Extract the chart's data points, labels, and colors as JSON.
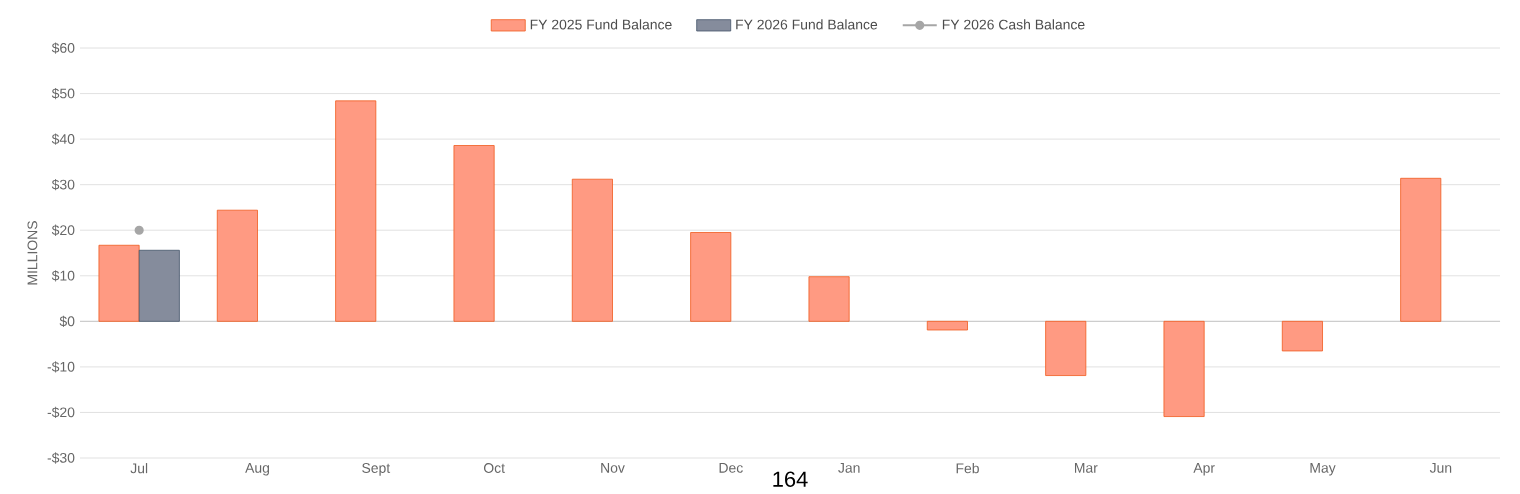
{
  "chart_data": {
    "type": "bar",
    "ylabel": "MILLIONS",
    "categories": [
      "Jul",
      "Aug",
      "Sept",
      "Oct",
      "Nov",
      "Dec",
      "Jan",
      "Feb",
      "Mar",
      "Apr",
      "May",
      "Jun"
    ],
    "series": [
      {
        "name": "FY 2025 Fund Balance",
        "color": "#ff9a82",
        "values": [
          16.7,
          24.4,
          48.4,
          38.6,
          31.2,
          19.5,
          9.8,
          -1.9,
          -11.9,
          -20.9,
          -6.5,
          31.4
        ]
      },
      {
        "name": "FY 2026 Fund Balance",
        "color": "#858c9c",
        "values": [
          15.6,
          null,
          null,
          null,
          null,
          null,
          null,
          null,
          null,
          null,
          null,
          null
        ]
      },
      {
        "name": "FY 2026 Cash Balance",
        "type": "line",
        "marker": "circle",
        "color": "#a6a6a6",
        "values": [
          20,
          null,
          null,
          null,
          null,
          null,
          null,
          null,
          null,
          null,
          null,
          null
        ]
      }
    ],
    "ylim": [
      -30,
      60
    ],
    "yticks": [
      {
        "value": -30,
        "label": "-$30"
      },
      {
        "value": -20,
        "label": "-$20"
      },
      {
        "value": -10,
        "label": "-$10"
      },
      {
        "value": 0,
        "label": "$0"
      },
      {
        "value": 10,
        "label": "$10"
      },
      {
        "value": 20,
        "label": "$20"
      },
      {
        "value": 30,
        "label": "$30"
      },
      {
        "value": 40,
        "label": "$40"
      },
      {
        "value": 50,
        "label": "$50"
      },
      {
        "value": 60,
        "label": "$60"
      }
    ],
    "grid": "y",
    "legend": "top",
    "annotations": [
      "164"
    ]
  }
}
